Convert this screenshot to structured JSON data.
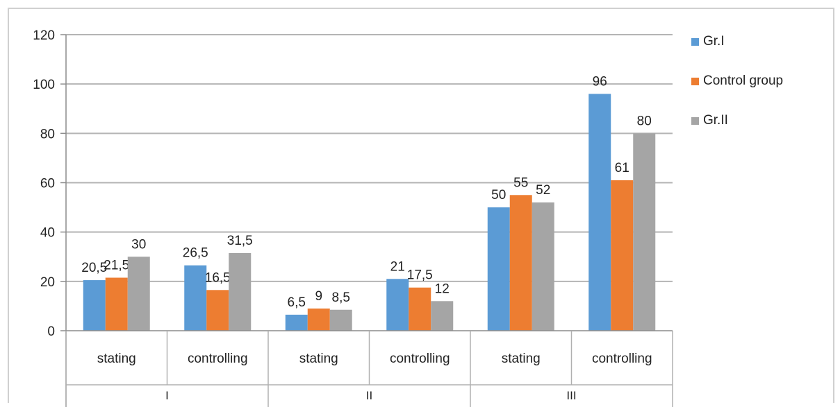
{
  "chart_data": {
    "type": "bar",
    "groups": [
      {
        "label": "I",
        "categories": [
          "stating",
          "controlling"
        ]
      },
      {
        "label": "II",
        "categories": [
          "stating",
          "controlling"
        ]
      },
      {
        "label": "III",
        "categories": [
          "stating",
          "controlling"
        ]
      }
    ],
    "categories": [
      "stating",
      "controlling",
      "stating",
      "controlling",
      "stating",
      "controlling"
    ],
    "series": [
      {
        "name": "Gr.I",
        "color": "#5b9bd5",
        "values": [
          20.5,
          26.5,
          6.5,
          21,
          50,
          96
        ],
        "labels": [
          "20,5",
          "26,5",
          "6,5",
          "21",
          "50",
          "96"
        ]
      },
      {
        "name": "Control group",
        "color": "#ed7d31",
        "values": [
          21.5,
          16.5,
          9,
          17.5,
          55,
          61
        ],
        "labels": [
          "21,5",
          "16,5",
          "9",
          "17,5",
          "55",
          "61"
        ]
      },
      {
        "name": "Gr.II",
        "color": "#a5a5a5",
        "values": [
          30,
          31.5,
          8.5,
          12,
          52,
          80
        ],
        "labels": [
          "30",
          "31,5",
          "8,5",
          "12",
          "52",
          "80"
        ]
      }
    ],
    "ylim": [
      0,
      120
    ],
    "yticks": [
      "0",
      "20",
      "40",
      "60",
      "80",
      "100",
      "120"
    ],
    "grid": true,
    "legend_position": "right",
    "title": "",
    "xlabel": "",
    "ylabel": ""
  }
}
